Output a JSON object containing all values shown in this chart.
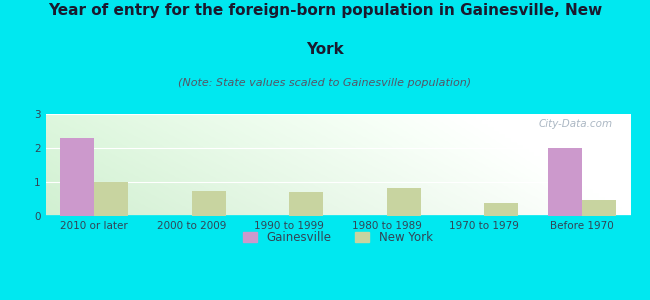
{
  "title_line1": "Year of entry for the foreign-born population in Gainesville, New",
  "title_line2": "York",
  "subtitle": "(Note: State values scaled to Gainesville population)",
  "categories": [
    "2010 or later",
    "2000 to 2009",
    "1990 to 1999",
    "1980 to 1989",
    "1970 to 1979",
    "Before 1970"
  ],
  "gainesville_values": [
    2.3,
    0,
    0,
    0,
    0,
    2.0
  ],
  "newyork_values": [
    1.0,
    0.75,
    0.7,
    0.83,
    0.38,
    0.48
  ],
  "gainesville_color": "#cc99cc",
  "newyork_color": "#c8d4a0",
  "background_color": "#00e8f0",
  "ylim": [
    0,
    3
  ],
  "yticks": [
    0,
    1,
    2,
    3
  ],
  "bar_width": 0.35,
  "title_fontsize": 11,
  "subtitle_fontsize": 8,
  "tick_fontsize": 7.5,
  "legend_fontsize": 8.5,
  "watermark": "City-Data.com",
  "title_color": "#1a1a2e",
  "subtitle_color": "#555566",
  "tick_color": "#334455"
}
